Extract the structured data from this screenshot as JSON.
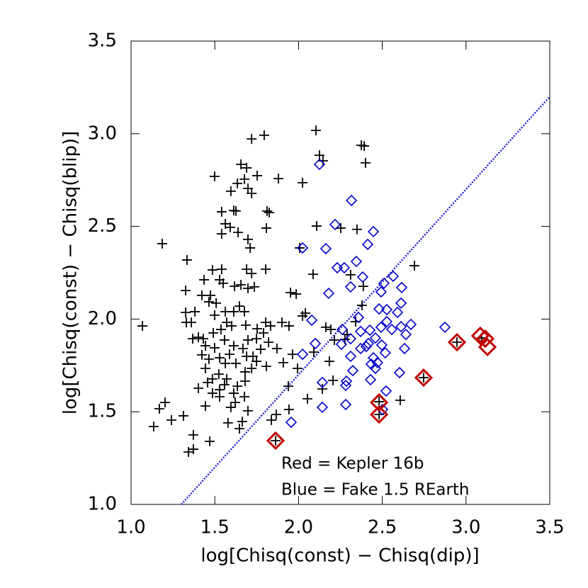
{
  "chart_data": {
    "type": "scatter",
    "xlabel": "log[Chisq(const) − Chisq(dip)]",
    "ylabel": "log[Chisq(const) − Chisq(blip)]",
    "annotations": [
      "Red = Kepler 16b",
      "Blue = Fake 1.5 REarth"
    ],
    "xlim": [
      1.0,
      3.5
    ],
    "ylim": [
      1.0,
      3.5
    ],
    "xticks": [
      {
        "value": 1,
        "label": "1.0"
      },
      1.5,
      {
        "value": 2,
        "label": "2.0"
      },
      2.5,
      {
        "value": 3,
        "label": "3.0"
      },
      3.5
    ],
    "yticks": [
      {
        "value": 1,
        "label": "1.0"
      },
      1.5,
      {
        "value": 2,
        "label": "2.0"
      },
      2.5,
      {
        "value": 3,
        "label": "3.0"
      },
      3.5
    ],
    "reference_line": {
      "x": [
        1.3,
        3.5
      ],
      "y": [
        1.0,
        3.2
      ],
      "color": "#2020d0",
      "style": "dotted"
    },
    "series": [
      {
        "color": "#000000",
        "marker": "plus",
        "x": [
          1.068,
          1.186,
          1.135,
          1.169,
          1.203,
          1.241,
          1.313,
          1.343,
          1.372,
          1.372,
          1.47,
          1.334,
          1.326,
          1.381,
          1.326,
          1.36,
          1.368,
          1.402,
          1.423,
          1.444,
          1.457,
          1.402,
          1.444,
          1.486,
          1.499,
          1.541,
          1.563,
          1.541,
          1.474,
          1.465,
          1.508,
          1.541,
          1.55,
          1.563,
          1.601,
          1.596,
          1.613,
          1.626,
          1.635,
          1.656,
          1.677,
          1.69,
          1.698,
          1.72,
          1.753,
          1.72,
          1.795,
          1.639,
          1.592,
          1.698,
          1.711,
          1.69,
          1.72,
          1.812,
          1.825,
          1.808,
          1.804,
          1.736,
          1.656,
          1.698,
          1.647,
          1.613,
          1.677,
          1.685,
          1.753,
          1.804,
          1.833,
          1.88,
          1.901,
          1.943,
          1.952,
          1.986,
          2.024,
          2.041,
          2.024,
          2.104,
          2.125,
          2.108,
          2.146,
          2.007,
          2.087,
          2.252,
          2.349,
          2.311,
          2.387,
          2.379,
          2.341,
          2.277,
          2.163,
          2.193,
          2.214,
          2.29,
          2.4,
          2.375,
          2.392,
          2.692,
          2.607,
          2.481,
          2.481,
          2.747,
          2.946,
          3.093,
          1.863,
          1.838,
          1.867,
          1.698,
          1.647,
          1.664,
          1.579,
          1.596,
          1.622,
          1.613,
          1.635,
          1.681,
          1.72,
          1.681,
          1.728,
          1.749,
          1.808,
          1.821,
          1.871,
          1.939,
          1.909,
          1.964,
          1.994,
          2.053,
          1.943,
          2.142,
          2.184,
          2.206,
          2.091,
          1.558,
          1.499,
          1.529,
          1.563,
          1.588,
          1.613,
          1.668,
          1.626,
          1.524,
          1.486,
          1.465,
          1.444,
          1.431,
          1.491,
          1.537,
          1.571,
          1.499,
          1.698,
          1.749,
          1.791,
          1.774,
          1.69,
          1.423,
          1.436,
          1.486,
          1.529,
          1.618,
          1.529,
          1.558,
          1.529,
          1.571,
          1.677,
          1.33
        ],
        "values": [
          1.963,
          2.407,
          1.42,
          1.516,
          1.55,
          1.455,
          1.478,
          1.283,
          1.375,
          1.298,
          1.34,
          2.319,
          2.154,
          2.04,
          2.036,
          1.982,
          1.894,
          1.902,
          1.807,
          1.734,
          1.658,
          1.627,
          1.531,
          1.6,
          2.77,
          2.579,
          2.514,
          2.46,
          2.128,
          2.093,
          2.086,
          2.269,
          2.193,
          2.04,
          1.963,
          2.69,
          2.586,
          2.583,
          2.732,
          2.835,
          2.755,
          2.816,
          2.705,
          2.678,
          2.774,
          2.972,
          2.992,
          2.468,
          2.495,
          2.43,
          2.384,
          2.269,
          2.246,
          2.583,
          2.575,
          2.491,
          2.269,
          2.174,
          2.185,
          2.166,
          2.07,
          2.04,
          2.04,
          1.967,
          1.948,
          1.982,
          1.963,
          2.758,
          1.982,
          1.963,
          2.143,
          2.135,
          2.017,
          2.032,
          2.736,
          3.018,
          2.884,
          2.502,
          2.854,
          2.384,
          2.242,
          2.491,
          2.484,
          2.239,
          2.177,
          2.074,
          1.986,
          1.891,
          1.956,
          1.944,
          1.887,
          1.917,
          2.843,
          2.938,
          2.934,
          2.288,
          1.562,
          1.554,
          1.485,
          1.684,
          1.875,
          1.898,
          1.344,
          1.455,
          1.485,
          1.505,
          1.409,
          1.447,
          1.44,
          1.524,
          1.55,
          1.6,
          1.638,
          1.665,
          1.734,
          1.715,
          1.799,
          1.772,
          1.745,
          1.875,
          1.841,
          1.638,
          1.765,
          1.81,
          1.734,
          1.57,
          1.512,
          1.623,
          1.772,
          1.669,
          1.822,
          1.887,
          1.845,
          1.791,
          1.761,
          1.81,
          1.856,
          1.841,
          1.761,
          1.703,
          1.677,
          1.784,
          1.856,
          1.894,
          1.925,
          1.944,
          1.982,
          2.021,
          1.887,
          1.894,
          1.925,
          1.837,
          1.799,
          2.128,
          2.212,
          2.265,
          2.212,
          2.177,
          1.581,
          1.646,
          1.619,
          1.677,
          1.581,
          1.982
        ]
      },
      {
        "color": "#0000cc",
        "marker": "diamond",
        "x": [
          2.125,
          2.316,
          2.218,
          2.447,
          2.163,
          2.024,
          2.413,
          2.231,
          2.273,
          2.345,
          2.383,
          2.565,
          2.18,
          2.311,
          2.51,
          2.616,
          2.493,
          2.079,
          2.358,
          2.481,
          2.527,
          2.591,
          2.612,
          2.024,
          2.1,
          2.261,
          2.311,
          2.371,
          2.426,
          2.493,
          2.527,
          2.557,
          2.612,
          2.671,
          2.874,
          2.641,
          2.417,
          2.256,
          2.459,
          2.497,
          2.371,
          2.404,
          2.518,
          2.311,
          2.447,
          2.633,
          2.434,
          2.324,
          2.459,
          2.603,
          2.286,
          2.282,
          2.472,
          2.282,
          2.43,
          2.523,
          2.142,
          1.956,
          2.142,
          2.502
        ],
        "values": [
          2.835,
          2.64,
          2.51,
          2.472,
          2.38,
          2.384,
          2.403,
          2.277,
          2.277,
          2.311,
          2.227,
          2.231,
          2.139,
          2.174,
          2.193,
          2.17,
          2.147,
          1.994,
          2.009,
          2.055,
          2.051,
          2.036,
          2.086,
          1.81,
          1.868,
          1.944,
          1.894,
          1.933,
          1.94,
          1.956,
          1.986,
          1.944,
          1.959,
          1.971,
          1.956,
          1.917,
          1.868,
          1.864,
          1.898,
          1.86,
          1.841,
          1.852,
          1.818,
          1.799,
          1.791,
          1.841,
          1.757,
          1.722,
          1.734,
          1.711,
          1.665,
          1.642,
          1.765,
          1.539,
          1.673,
          1.612,
          1.524,
          1.443,
          1.658,
          1.512
        ]
      },
      {
        "color": "#c00000",
        "marker": "diamond-bold",
        "x": [
          1.863,
          2.481,
          2.481,
          2.747,
          2.946,
          3.085,
          3.115,
          3.128
        ],
        "values": [
          1.344,
          1.55,
          1.485,
          1.684,
          1.875,
          1.91,
          1.894,
          1.849
        ]
      }
    ]
  }
}
